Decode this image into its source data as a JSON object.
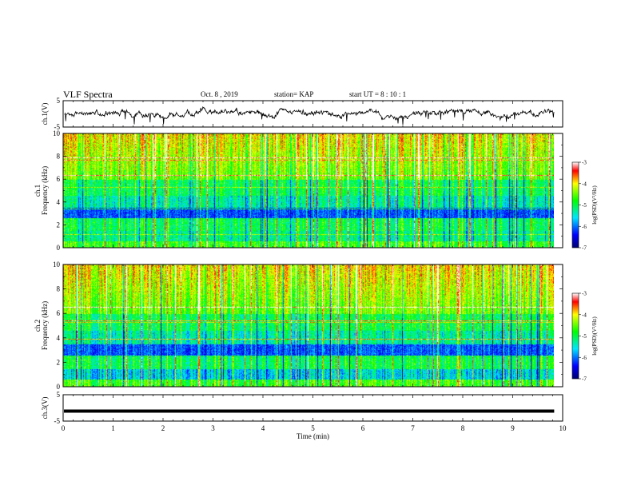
{
  "header": {
    "title": "VLF Spectra",
    "date": "Oct. 8  , 2019",
    "station": "station= KAP",
    "start": "start  UT  =  8  : 10 : 1"
  },
  "chart_data": {
    "type": "heatmap",
    "xlabel": "Time  (min)",
    "xlim": [
      0,
      10
    ],
    "xticks": [
      "0",
      "1",
      "2",
      "3",
      "4",
      "5",
      "6",
      "7",
      "8",
      "9",
      "10"
    ],
    "data_end_min": 9.83,
    "panels": [
      {
        "id": "ch1-waveform",
        "type": "line",
        "ylabel": "ch.1(V)",
        "ylim": [
          -5,
          5
        ],
        "yticks": [
          "5",
          "-5"
        ]
      },
      {
        "id": "ch1-spectrogram",
        "type": "heatmap",
        "ylabel_top": "ch.1",
        "ylabel": "Frequency  (kHz)",
        "ylim": [
          0,
          10
        ],
        "yticks": [
          "0",
          "2",
          "4",
          "6",
          "8",
          "10"
        ],
        "colorbar": {
          "label": "log(PSD)(V²/Hz)",
          "range": [
            -7,
            -3
          ],
          "ticks": [
            "-3",
            "-4",
            "-5",
            "-6",
            "-7"
          ]
        }
      },
      {
        "id": "ch2-spectrogram",
        "type": "heatmap",
        "ylabel_top": "ch.2",
        "ylabel": "Frequency  (kHz)",
        "ylim": [
          0,
          10
        ],
        "yticks": [
          "0",
          "2",
          "4",
          "6",
          "8",
          "10"
        ],
        "colorbar": {
          "label": "log(PSD)(V²/Hz)",
          "range": [
            -7,
            -3
          ],
          "ticks": [
            "-3",
            "-4",
            "-5",
            "-6",
            "-7"
          ]
        }
      },
      {
        "id": "ch3-waveform",
        "type": "line",
        "ylabel": "ch.3(V)",
        "ylim": [
          -5,
          5
        ],
        "yticks": [
          "5",
          "-5"
        ],
        "level": -1.2
      }
    ]
  }
}
